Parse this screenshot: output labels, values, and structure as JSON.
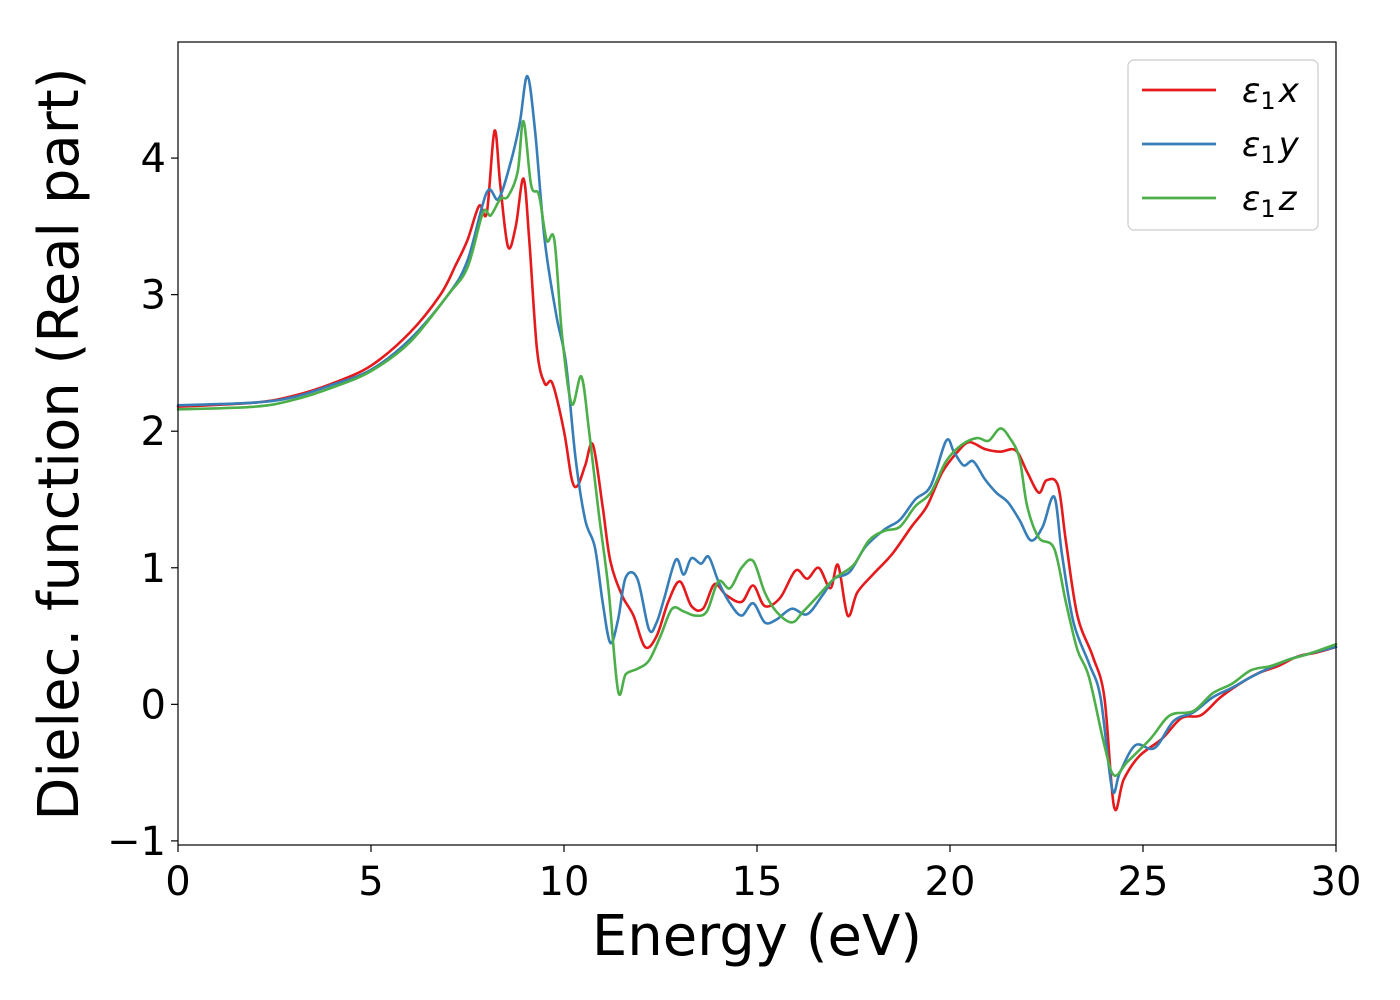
{
  "chart_data": {
    "type": "line",
    "xlabel": "Energy (eV)",
    "ylabel": "Dielec. function (Real part)",
    "xlim": [
      0,
      30
    ],
    "ylim": [
      -1.03,
      4.85
    ],
    "xticks": [
      0,
      5,
      10,
      15,
      20,
      25,
      30
    ],
    "xtick_labels": [
      "0",
      "5",
      "10",
      "15",
      "20",
      "25",
      "30"
    ],
    "yticks": [
      -1,
      0,
      1,
      2,
      3,
      4
    ],
    "ytick_labels": [
      "−1",
      "0",
      "1",
      "2",
      "3",
      "4"
    ],
    "grid": false,
    "legend_position": "top-right",
    "series": [
      {
        "name": "ε₁x",
        "legend_main": "ε",
        "legend_sub": "1",
        "legend_var": "x",
        "color": "#e41a1c",
        "points": [
          [
            0,
            2.18
          ],
          [
            2,
            2.21
          ],
          [
            3,
            2.26
          ],
          [
            4,
            2.35
          ],
          [
            5,
            2.48
          ],
          [
            6,
            2.72
          ],
          [
            6.8,
            3.0
          ],
          [
            7.2,
            3.22
          ],
          [
            7.5,
            3.4
          ],
          [
            7.8,
            3.65
          ],
          [
            8.0,
            3.6
          ],
          [
            8.2,
            4.2
          ],
          [
            8.35,
            3.8
          ],
          [
            8.55,
            3.35
          ],
          [
            8.75,
            3.5
          ],
          [
            8.95,
            3.85
          ],
          [
            9.1,
            3.4
          ],
          [
            9.3,
            2.6
          ],
          [
            9.5,
            2.35
          ],
          [
            9.7,
            2.35
          ],
          [
            10.0,
            2.0
          ],
          [
            10.2,
            1.65
          ],
          [
            10.35,
            1.6
          ],
          [
            10.55,
            1.75
          ],
          [
            10.75,
            1.9
          ],
          [
            11.0,
            1.45
          ],
          [
            11.2,
            1.05
          ],
          [
            11.5,
            0.8
          ],
          [
            11.8,
            0.65
          ],
          [
            12.1,
            0.42
          ],
          [
            12.4,
            0.5
          ],
          [
            12.7,
            0.75
          ],
          [
            13.0,
            0.9
          ],
          [
            13.3,
            0.72
          ],
          [
            13.6,
            0.7
          ],
          [
            13.9,
            0.88
          ],
          [
            14.2,
            0.8
          ],
          [
            14.6,
            0.75
          ],
          [
            14.9,
            0.87
          ],
          [
            15.2,
            0.72
          ],
          [
            15.6,
            0.78
          ],
          [
            16.0,
            0.98
          ],
          [
            16.3,
            0.92
          ],
          [
            16.6,
            1.0
          ],
          [
            16.9,
            0.85
          ],
          [
            17.1,
            1.02
          ],
          [
            17.35,
            0.65
          ],
          [
            17.6,
            0.82
          ],
          [
            18.0,
            0.95
          ],
          [
            18.5,
            1.1
          ],
          [
            19.0,
            1.3
          ],
          [
            19.4,
            1.45
          ],
          [
            19.8,
            1.7
          ],
          [
            20.2,
            1.85
          ],
          [
            20.5,
            1.92
          ],
          [
            20.9,
            1.87
          ],
          [
            21.3,
            1.85
          ],
          [
            21.7,
            1.86
          ],
          [
            22.0,
            1.7
          ],
          [
            22.3,
            1.55
          ],
          [
            22.5,
            1.64
          ],
          [
            22.8,
            1.6
          ],
          [
            23.0,
            1.2
          ],
          [
            23.3,
            0.65
          ],
          [
            23.7,
            0.35
          ],
          [
            24.0,
            0.05
          ],
          [
            24.25,
            -0.75
          ],
          [
            24.5,
            -0.55
          ],
          [
            24.9,
            -0.38
          ],
          [
            25.5,
            -0.25
          ],
          [
            26.0,
            -0.1
          ],
          [
            26.5,
            -0.08
          ],
          [
            27.0,
            0.05
          ],
          [
            27.5,
            0.15
          ],
          [
            28.0,
            0.23
          ],
          [
            28.5,
            0.28
          ],
          [
            29.0,
            0.35
          ],
          [
            29.5,
            0.38
          ],
          [
            30.0,
            0.42
          ]
        ]
      },
      {
        "name": "ε₁y",
        "legend_main": "ε",
        "legend_sub": "1",
        "legend_var": "y",
        "color": "#377eb8",
        "points": [
          [
            0,
            2.19
          ],
          [
            2,
            2.21
          ],
          [
            3,
            2.25
          ],
          [
            4,
            2.34
          ],
          [
            5,
            2.45
          ],
          [
            6,
            2.67
          ],
          [
            7,
            3.0
          ],
          [
            7.5,
            3.25
          ],
          [
            8.0,
            3.75
          ],
          [
            8.3,
            3.7
          ],
          [
            8.6,
            3.95
          ],
          [
            8.85,
            4.25
          ],
          [
            9.05,
            4.6
          ],
          [
            9.25,
            4.2
          ],
          [
            9.5,
            3.4
          ],
          [
            9.8,
            2.85
          ],
          [
            10.05,
            2.5
          ],
          [
            10.3,
            1.8
          ],
          [
            10.55,
            1.35
          ],
          [
            10.8,
            1.15
          ],
          [
            11.0,
            0.75
          ],
          [
            11.2,
            0.45
          ],
          [
            11.4,
            0.62
          ],
          [
            11.6,
            0.93
          ],
          [
            11.9,
            0.92
          ],
          [
            12.2,
            0.55
          ],
          [
            12.4,
            0.6
          ],
          [
            12.6,
            0.78
          ],
          [
            12.9,
            1.06
          ],
          [
            13.1,
            0.95
          ],
          [
            13.3,
            1.07
          ],
          [
            13.55,
            1.03
          ],
          [
            13.75,
            1.08
          ],
          [
            14.0,
            0.9
          ],
          [
            14.3,
            0.74
          ],
          [
            14.6,
            0.65
          ],
          [
            14.9,
            0.74
          ],
          [
            15.2,
            0.6
          ],
          [
            15.5,
            0.62
          ],
          [
            15.9,
            0.7
          ],
          [
            16.3,
            0.66
          ],
          [
            16.7,
            0.8
          ],
          [
            17.0,
            0.92
          ],
          [
            17.4,
            0.97
          ],
          [
            17.8,
            1.15
          ],
          [
            18.3,
            1.28
          ],
          [
            18.7,
            1.35
          ],
          [
            19.1,
            1.5
          ],
          [
            19.5,
            1.6
          ],
          [
            19.9,
            1.93
          ],
          [
            20.1,
            1.85
          ],
          [
            20.35,
            1.75
          ],
          [
            20.6,
            1.78
          ],
          [
            20.9,
            1.65
          ],
          [
            21.2,
            1.55
          ],
          [
            21.5,
            1.48
          ],
          [
            21.8,
            1.35
          ],
          [
            22.1,
            1.2
          ],
          [
            22.4,
            1.3
          ],
          [
            22.7,
            1.52
          ],
          [
            22.9,
            1.1
          ],
          [
            23.2,
            0.6
          ],
          [
            23.6,
            0.3
          ],
          [
            23.9,
            0.05
          ],
          [
            24.2,
            -0.62
          ],
          [
            24.4,
            -0.5
          ],
          [
            24.8,
            -0.3
          ],
          [
            25.3,
            -0.32
          ],
          [
            25.8,
            -0.12
          ],
          [
            26.3,
            -0.06
          ],
          [
            26.8,
            0.05
          ],
          [
            27.3,
            0.12
          ],
          [
            27.8,
            0.2
          ],
          [
            28.3,
            0.27
          ],
          [
            28.8,
            0.33
          ],
          [
            29.3,
            0.37
          ],
          [
            30.0,
            0.42
          ]
        ]
      },
      {
        "name": "ε₁z",
        "legend_main": "ε",
        "legend_sub": "1",
        "legend_var": "z",
        "color": "#4daf4a",
        "points": [
          [
            0,
            2.16
          ],
          [
            2,
            2.18
          ],
          [
            3,
            2.23
          ],
          [
            4,
            2.32
          ],
          [
            5,
            2.44
          ],
          [
            6,
            2.65
          ],
          [
            7,
            3.0
          ],
          [
            7.5,
            3.2
          ],
          [
            7.9,
            3.6
          ],
          [
            8.1,
            3.58
          ],
          [
            8.35,
            3.7
          ],
          [
            8.55,
            3.72
          ],
          [
            8.8,
            3.9
          ],
          [
            8.95,
            4.27
          ],
          [
            9.15,
            3.8
          ],
          [
            9.35,
            3.73
          ],
          [
            9.55,
            3.4
          ],
          [
            9.75,
            3.4
          ],
          [
            9.95,
            2.7
          ],
          [
            10.2,
            2.2
          ],
          [
            10.45,
            2.4
          ],
          [
            10.65,
            2.0
          ],
          [
            10.9,
            1.4
          ],
          [
            11.15,
            0.85
          ],
          [
            11.4,
            0.1
          ],
          [
            11.6,
            0.22
          ],
          [
            11.9,
            0.26
          ],
          [
            12.2,
            0.32
          ],
          [
            12.5,
            0.5
          ],
          [
            12.8,
            0.7
          ],
          [
            13.1,
            0.68
          ],
          [
            13.4,
            0.65
          ],
          [
            13.7,
            0.68
          ],
          [
            14.0,
            0.9
          ],
          [
            14.3,
            0.85
          ],
          [
            14.6,
            1.0
          ],
          [
            14.9,
            1.05
          ],
          [
            15.2,
            0.82
          ],
          [
            15.5,
            0.68
          ],
          [
            15.9,
            0.6
          ],
          [
            16.2,
            0.68
          ],
          [
            16.6,
            0.8
          ],
          [
            17.0,
            0.92
          ],
          [
            17.5,
            1.02
          ],
          [
            17.9,
            1.2
          ],
          [
            18.3,
            1.27
          ],
          [
            18.7,
            1.3
          ],
          [
            19.1,
            1.45
          ],
          [
            19.5,
            1.55
          ],
          [
            19.9,
            1.78
          ],
          [
            20.3,
            1.9
          ],
          [
            20.7,
            1.95
          ],
          [
            21.0,
            1.93
          ],
          [
            21.3,
            2.02
          ],
          [
            21.55,
            1.95
          ],
          [
            21.8,
            1.8
          ],
          [
            22.0,
            1.45
          ],
          [
            22.3,
            1.22
          ],
          [
            22.7,
            1.14
          ],
          [
            23.0,
            0.75
          ],
          [
            23.3,
            0.4
          ],
          [
            23.6,
            0.2
          ],
          [
            24.0,
            -0.3
          ],
          [
            24.25,
            -0.52
          ],
          [
            24.6,
            -0.42
          ],
          [
            25.2,
            -0.25
          ],
          [
            25.7,
            -0.08
          ],
          [
            26.3,
            -0.05
          ],
          [
            26.8,
            0.08
          ],
          [
            27.3,
            0.15
          ],
          [
            27.8,
            0.25
          ],
          [
            28.3,
            0.28
          ],
          [
            28.8,
            0.33
          ],
          [
            29.3,
            0.37
          ],
          [
            30.0,
            0.44
          ]
        ]
      }
    ]
  }
}
